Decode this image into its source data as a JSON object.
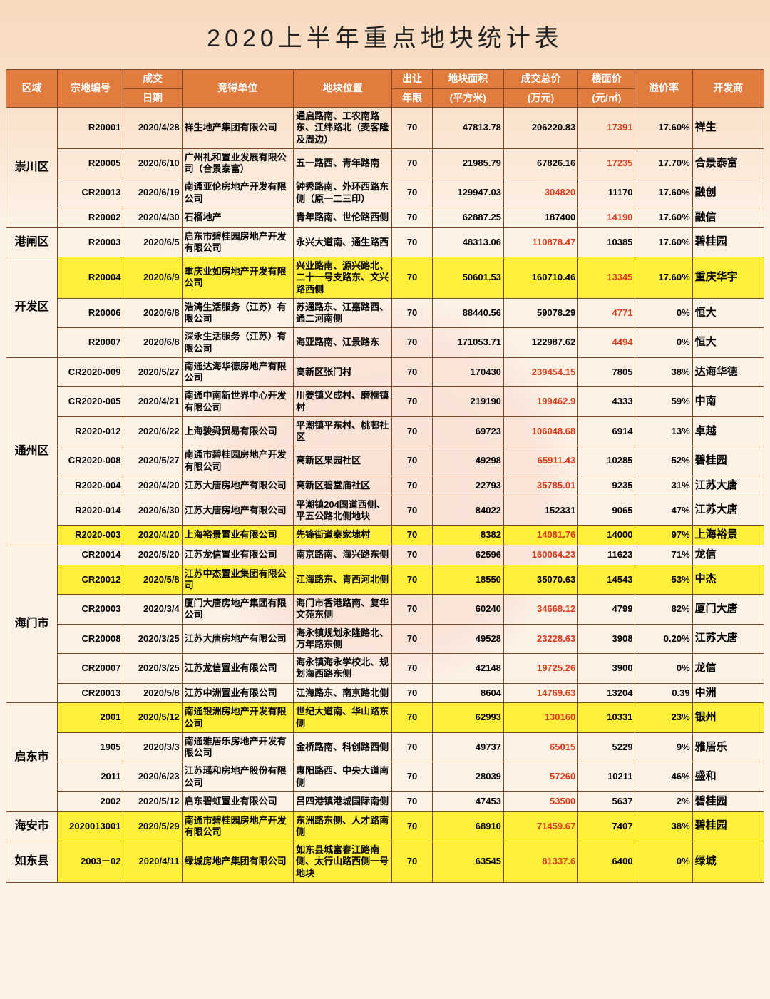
{
  "title": "2020上半年重点地块统计表",
  "headers": {
    "region": "区域",
    "code": "宗地编号",
    "deal_group": "成交",
    "date": "日期",
    "buyer": "竞得单位",
    "location": "地块位置",
    "term_group": "出让",
    "term_unit": "年限",
    "area_group": "地块面积",
    "area_unit": "(平方米)",
    "total_group": "成交总价",
    "total_unit": "(万元)",
    "floor_group": "楼面价",
    "floor_unit": "(元/㎡)",
    "premium": "溢价率",
    "developer": "开发商"
  },
  "regions": [
    {
      "name": "崇川区",
      "rows": [
        {
          "hl": false,
          "code": "R20001",
          "date": "2020/4/28",
          "buyer": "祥生地产集团有限公司",
          "location": "通启路南、工农南路东、江纬路北（麦客隆及周边）",
          "term": "70",
          "area": "47813.78",
          "total": "206220.83",
          "total_red": false,
          "floor": "17391",
          "floor_red": true,
          "premium": "17.60%",
          "developer": "祥生"
        },
        {
          "hl": false,
          "code": "R20005",
          "date": "2020/6/10",
          "buyer": "广州礼和置业发展有限公司（合景泰富）",
          "location": "五一路西、青年路南",
          "term": "70",
          "area": "21985.79",
          "total": "67826.16",
          "total_red": false,
          "floor": "17235",
          "floor_red": true,
          "premium": "17.70%",
          "developer": "合景泰富"
        },
        {
          "hl": false,
          "code": "CR20013",
          "date": "2020/6/19",
          "buyer": "南通亚伦房地产开发有限公司",
          "location": "钟秀路南、外环西路东侧（原一二三印）",
          "term": "70",
          "area": "129947.03",
          "total": "304820",
          "total_red": true,
          "floor": "11170",
          "floor_red": false,
          "premium": "17.60%",
          "developer": "融创"
        },
        {
          "hl": false,
          "code": "R20002",
          "date": "2020/4/30",
          "buyer": "石榴地产",
          "location": "青年路南、世伦路西侧",
          "term": "70",
          "area": "62887.25",
          "total": "187400",
          "total_red": false,
          "floor": "14190",
          "floor_red": true,
          "premium": "17.60%",
          "developer": "融信"
        }
      ]
    },
    {
      "name": "港闸区",
      "rows": [
        {
          "hl": false,
          "code": "R20003",
          "date": "2020/6/5",
          "buyer": "启东市碧桂园房地产开发有限公司",
          "location": "永兴大道南、通生路西",
          "term": "70",
          "area": "48313.06",
          "total": "110878.47",
          "total_red": true,
          "floor": "10385",
          "floor_red": false,
          "premium": "17.60%",
          "developer": "碧桂园"
        }
      ]
    },
    {
      "name": "开发区",
      "rows": [
        {
          "hl": true,
          "code": "R20004",
          "date": "2020/6/9",
          "buyer": "重庆业如房地产开发有限公司",
          "location": "兴业路南、源兴路北、二十一号支路东、文兴路西侧",
          "term": "70",
          "area": "50601.53",
          "total": "160710.46",
          "total_red": false,
          "floor": "13345",
          "floor_red": true,
          "premium": "17.60%",
          "developer": "重庆华宇"
        },
        {
          "hl": false,
          "code": "R20006",
          "date": "2020/6/8",
          "buyer": "浩涛生活服务（江苏）有限公司",
          "location": "苏通路东、江嘉路西、通二河南侧",
          "term": "70",
          "area": "88440.56",
          "total": "59078.29",
          "total_red": false,
          "floor": "4771",
          "floor_red": true,
          "premium": "0%",
          "developer": "恒大"
        },
        {
          "hl": false,
          "code": "R20007",
          "date": "2020/6/8",
          "buyer": "深永生活服务（江苏）有限公司",
          "location": "海亚路南、江景路东",
          "term": "70",
          "area": "171053.71",
          "total": "122987.62",
          "total_red": false,
          "floor": "4494",
          "floor_red": true,
          "premium": "0%",
          "developer": "恒大"
        }
      ]
    },
    {
      "name": "通州区",
      "rows": [
        {
          "hl": false,
          "code": "CR2020-009",
          "date": "2020/5/27",
          "buyer": "南通达海华德房地产有限公司",
          "location": "高新区张门村",
          "term": "70",
          "area": "170430",
          "total": "239454.15",
          "total_red": true,
          "floor": "7805",
          "floor_red": false,
          "premium": "38%",
          "developer": "达海华德"
        },
        {
          "hl": false,
          "code": "CR2020-005",
          "date": "2020/4/21",
          "buyer": "南通中南新世界中心开发有限公司",
          "location": "川姜镇义成村、磨框镇村",
          "term": "70",
          "area": "219190",
          "total": "199462.9",
          "total_red": true,
          "floor": "4333",
          "floor_red": false,
          "premium": "59%",
          "developer": "中南"
        },
        {
          "hl": false,
          "code": "R2020-012",
          "date": "2020/6/22",
          "buyer": "上海骏舜贸易有限公司",
          "location": "平潮镇平东村、桃邨社区",
          "term": "70",
          "area": "69723",
          "total": "106048.68",
          "total_red": true,
          "floor": "6914",
          "floor_red": false,
          "premium": "13%",
          "developer": "卓越"
        },
        {
          "hl": false,
          "code": "CR2020-008",
          "date": "2020/5/27",
          "buyer": "南通市碧桂园房地产开发有限公司",
          "location": "高新区果园社区",
          "term": "70",
          "area": "49298",
          "total": "65911.43",
          "total_red": true,
          "floor": "10285",
          "floor_red": false,
          "premium": "52%",
          "developer": "碧桂园"
        },
        {
          "hl": false,
          "code": "R2020-004",
          "date": "2020/4/20",
          "buyer": "江苏大唐房地产有限公司",
          "location": "高新区碧堂庙社区",
          "term": "70",
          "area": "22793",
          "total": "35785.01",
          "total_red": true,
          "floor": "9235",
          "floor_red": false,
          "premium": "31%",
          "developer": "江苏大唐"
        },
        {
          "hl": false,
          "code": "R2020-014",
          "date": "2020/6/30",
          "buyer": "江苏大唐房地产有限公司",
          "location": "平潮镇204国道西侧、平五公路北侧地块",
          "term": "70",
          "area": "84022",
          "total": "152331",
          "total_red": false,
          "floor": "9065",
          "floor_red": false,
          "premium": "47%",
          "developer": "江苏大唐"
        },
        {
          "hl": true,
          "code": "R2020-003",
          "date": "2020/4/20",
          "buyer": "上海裕景置业有限公司",
          "location": "先锋街道秦家埭村",
          "term": "70",
          "area": "8382",
          "total": "14081.76",
          "total_red": true,
          "floor": "14000",
          "floor_red": false,
          "premium": "97%",
          "developer": "上海裕景"
        }
      ]
    },
    {
      "name": "海门市",
      "rows": [
        {
          "hl": false,
          "code": "CR20014",
          "date": "2020/5/20",
          "buyer": "江苏龙信置业有限公司",
          "location": "南京路南、海兴路东侧",
          "term": "70",
          "area": "62596",
          "total": "160064.23",
          "total_red": true,
          "floor": "11623",
          "floor_red": false,
          "premium": "71%",
          "developer": "龙信"
        },
        {
          "hl": true,
          "code": "CR20012",
          "date": "2020/5/8",
          "buyer": "江苏中杰置业集团有限公司",
          "location": "江海路东、青西河北侧",
          "term": "70",
          "area": "18550",
          "total": "35070.63",
          "total_red": false,
          "floor": "14543",
          "floor_red": false,
          "premium": "53%",
          "developer": "中杰"
        },
        {
          "hl": false,
          "code": "CR20003",
          "date": "2020/3/4",
          "buyer": "厦门大唐房地产集团有限公司",
          "location": "海门市香港路南、复华文苑东侧",
          "term": "70",
          "area": "60240",
          "total": "34668.12",
          "total_red": true,
          "floor": "4799",
          "floor_red": false,
          "premium": "82%",
          "developer": "厦门大唐"
        },
        {
          "hl": false,
          "code": "CR20008",
          "date": "2020/3/25",
          "buyer": "江苏大唐房地产有限公司",
          "location": "海永镇规划永隆路北、万年路东侧",
          "term": "70",
          "area": "49528",
          "total": "23228.63",
          "total_red": true,
          "floor": "3908",
          "floor_red": false,
          "premium": "0.20%",
          "developer": "江苏大唐"
        },
        {
          "hl": false,
          "code": "CR20007",
          "date": "2020/3/25",
          "buyer": "江苏龙信置业有限公司",
          "location": "海永镇海永学校北、规划海西路东侧",
          "term": "70",
          "area": "42148",
          "total": "19725.26",
          "total_red": true,
          "floor": "3900",
          "floor_red": false,
          "premium": "0%",
          "developer": "龙信"
        },
        {
          "hl": false,
          "code": "CR20013",
          "date": "2020/5/8",
          "buyer": "江苏中洲置业有限公司",
          "location": "江海路东、南京路北侧",
          "term": "70",
          "area": "8604",
          "total": "14769.63",
          "total_red": true,
          "floor": "13204",
          "floor_red": false,
          "premium": "0.39",
          "developer": "中洲"
        }
      ]
    },
    {
      "name": "启东市",
      "rows": [
        {
          "hl": true,
          "code": "2001",
          "date": "2020/5/12",
          "buyer": "南通银洲房地产开发有限公司",
          "location": "世纪大道南、华山路东侧",
          "term": "70",
          "area": "62993",
          "total": "130160",
          "total_red": true,
          "floor": "10331",
          "floor_red": false,
          "premium": "23%",
          "developer": "银州"
        },
        {
          "hl": false,
          "code": "1905",
          "date": "2020/3/3",
          "buyer": "南通雅居乐房地产开发有限公司",
          "location": "金桥路南、科创路西侧",
          "term": "70",
          "area": "49737",
          "total": "65015",
          "total_red": true,
          "floor": "5229",
          "floor_red": false,
          "premium": "9%",
          "developer": "雅居乐"
        },
        {
          "hl": false,
          "code": "2011",
          "date": "2020/6/23",
          "buyer": "江苏瑶和房地产股份有限公司",
          "location": "惠阳路西、中央大道南侧",
          "term": "70",
          "area": "28039",
          "total": "57260",
          "total_red": true,
          "floor": "10211",
          "floor_red": false,
          "premium": "46%",
          "developer": "盛和"
        },
        {
          "hl": false,
          "code": "2002",
          "date": "2020/5/12",
          "buyer": "启东碧虹置业有限公司",
          "location": "吕四港镇港城国际南侧",
          "term": "70",
          "area": "47453",
          "total": "53500",
          "total_red": true,
          "floor": "5637",
          "floor_red": false,
          "premium": "2%",
          "developer": "碧桂园"
        }
      ]
    },
    {
      "name": "海安市",
      "rows": [
        {
          "hl": true,
          "code": "2020013001",
          "date": "2020/5/29",
          "buyer": "南通市碧桂园房地产开发有限公司",
          "location": "东洲路东侧、人才路南侧",
          "term": "70",
          "area": "68910",
          "total": "71459.67",
          "total_red": true,
          "floor": "7407",
          "floor_red": false,
          "premium": "38%",
          "developer": "碧桂园"
        }
      ]
    },
    {
      "name": "如东县",
      "rows": [
        {
          "hl": true,
          "code": "2003－02",
          "date": "2020/4/11",
          "buyer": "绿城房地产集团有限公司",
          "location": "如东县城富春江路南侧、太行山路西侧一号地块",
          "term": "70",
          "area": "63545",
          "total": "81337.6",
          "total_red": true,
          "floor": "6400",
          "floor_red": false,
          "premium": "0%",
          "developer": "绿城"
        }
      ]
    }
  ]
}
